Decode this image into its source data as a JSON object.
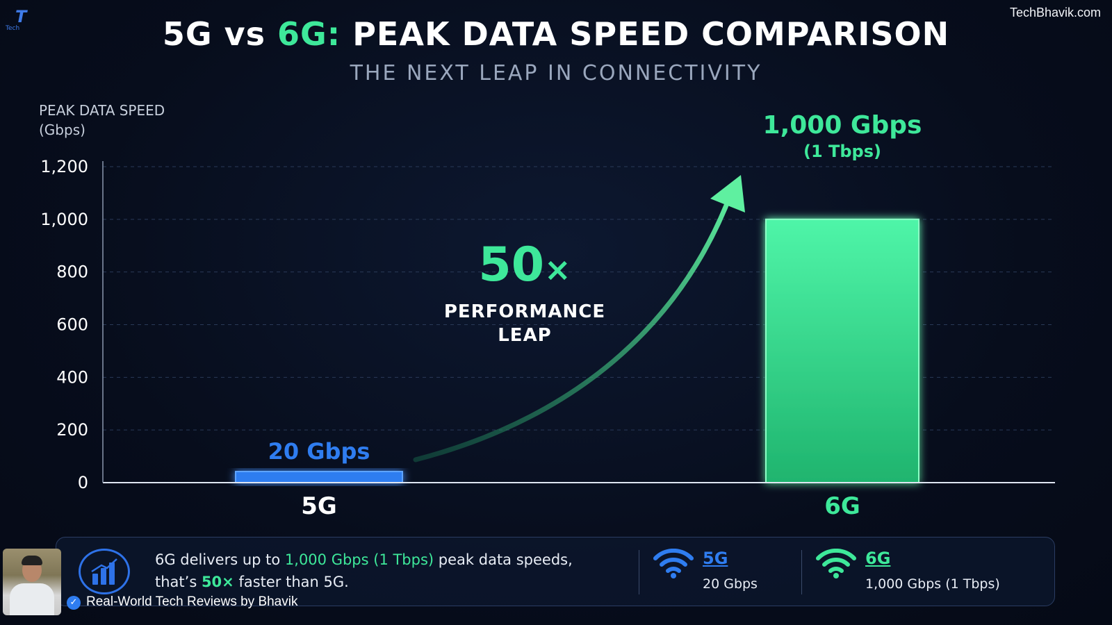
{
  "watermark": {
    "site": "TechBhavik.com",
    "logo_letter": "T",
    "logo_text": "Tech"
  },
  "header": {
    "title_a": "5G vs",
    "title_b": "6G:",
    "title_c": "PEAK DATA SPEED COMPARISON",
    "subtitle": "THE NEXT LEAP IN CONNECTIVITY"
  },
  "chart_data": {
    "type": "bar",
    "ylabel_lines": [
      "PEAK DATA SPEED",
      "(Gbps)"
    ],
    "ylim": [
      0,
      1200
    ],
    "yticks": [
      0,
      200,
      400,
      600,
      800,
      1000,
      1200
    ],
    "ytick_labels": [
      "0",
      "200",
      "400",
      "600",
      "800",
      "1,000",
      "1,200"
    ],
    "grid": true,
    "categories": [
      "5G",
      "6G"
    ],
    "values": [
      20,
      1000
    ],
    "value_labels": [
      "20 Gbps",
      "1,000 Gbps"
    ],
    "value_sublabels": [
      "",
      "(1 Tbps)"
    ],
    "colors": [
      "#2f7df0",
      "#3ee89a"
    ],
    "annotation": {
      "value": "50",
      "symbol": "×",
      "text_lines": [
        "PERFORMANCE",
        "LEAP"
      ]
    }
  },
  "footer": {
    "text_1": "6G delivers up to ",
    "text_highlight": "1,000 Gbps (1 Tbps)",
    "text_2": " peak data speeds,",
    "text_3": "that’s ",
    "text_highlight_2": "50×",
    "text_4": " faster than 5G.",
    "legend": [
      {
        "name": "5G",
        "value": "20 Gbps",
        "color": "#2f7df0",
        "icon": "wifi-icon"
      },
      {
        "name": "6G",
        "value": "1,000 Gbps (1 Tbps)",
        "color": "#3ee89a",
        "icon": "wifi-icon"
      }
    ],
    "icon": "bar-chart-icon"
  },
  "creator": {
    "byline": "Real-World Tech Reviews by Bhavik",
    "verified_icon": "verified-check-icon"
  }
}
